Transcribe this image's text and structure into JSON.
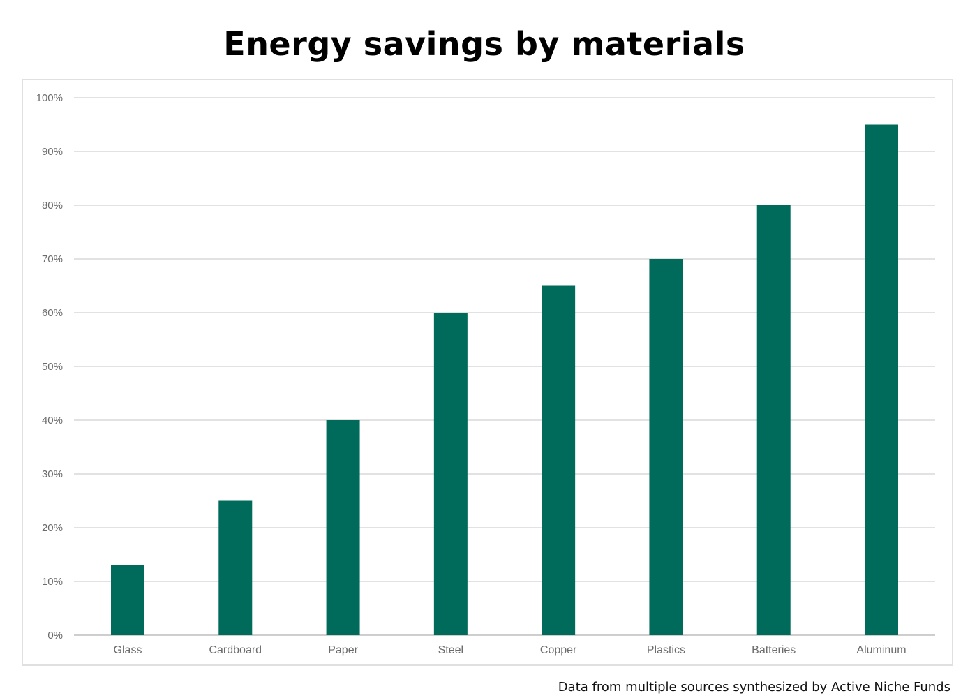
{
  "chart_data": {
    "type": "bar",
    "title": "Energy savings by materials",
    "categories": [
      "Glass",
      "Cardboard",
      "Paper",
      "Steel",
      "Copper",
      "Plastics",
      "Batteries",
      "Aluminum"
    ],
    "values": [
      13,
      25,
      40,
      60,
      65,
      70,
      80,
      95
    ],
    "ylim": [
      0,
      100
    ],
    "y_ticks": [
      "0%",
      "10%",
      "20%",
      "30%",
      "40%",
      "50%",
      "60%",
      "70%",
      "80%",
      "90%",
      "100%"
    ],
    "xlabel": "",
    "ylabel": "",
    "grid": true,
    "legend": "none",
    "bar_color": "#006b5a"
  },
  "footnote": "Data from multiple sources synthesized by Active Niche Funds"
}
